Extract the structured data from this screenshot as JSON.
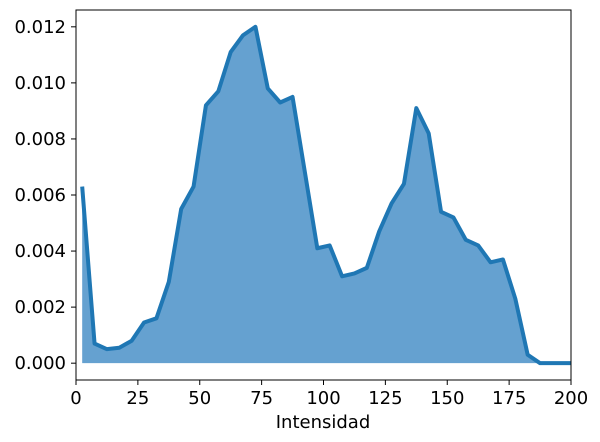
{
  "chart_data": {
    "type": "area",
    "title": "",
    "xlabel": "Intensidad",
    "ylabel": "",
    "xlim": [
      0,
      200
    ],
    "ylim": [
      -0.0006,
      0.0126
    ],
    "grid": false,
    "legend": "none",
    "x_ticks": [
      0,
      25,
      50,
      75,
      100,
      125,
      150,
      175,
      200
    ],
    "x_tick_labels": [
      "0",
      "25",
      "50",
      "75",
      "100",
      "125",
      "150",
      "175",
      "200"
    ],
    "y_ticks": [
      0,
      0.002,
      0.004,
      0.006,
      0.008,
      0.01,
      0.012
    ],
    "y_tick_labels": [
      "0.000",
      "0.002",
      "0.004",
      "0.006",
      "0.008",
      "0.010",
      "0.012"
    ],
    "series": [
      {
        "color": "#1f77b4",
        "fill_color": "#4a90c8",
        "x": [
          2.5,
          7.5,
          12.5,
          17.5,
          22.5,
          27.5,
          32.5,
          37.5,
          42.5,
          47.5,
          52.5,
          57.5,
          62.5,
          67.5,
          72.5,
          77.5,
          82.5,
          87.5,
          92.5,
          97.5,
          102.5,
          107.5,
          112.5,
          117.5,
          122.5,
          127.5,
          132.5,
          137.5,
          142.5,
          147.5,
          152.5,
          157.5,
          162.5,
          167.5,
          172.5,
          177.5,
          182.5,
          187.5,
          192.5,
          197.5,
          200
        ],
        "values": [
          0.0063,
          0.0007,
          0.0005,
          0.00055,
          0.0008,
          0.00145,
          0.0016,
          0.0029,
          0.0055,
          0.0063,
          0.0092,
          0.0097,
          0.0111,
          0.0117,
          0.012,
          0.0098,
          0.0093,
          0.0095,
          0.0068,
          0.0041,
          0.0042,
          0.0031,
          0.0032,
          0.0034,
          0.0047,
          0.0057,
          0.0064,
          0.0091,
          0.0082,
          0.0054,
          0.0052,
          0.0044,
          0.0042,
          0.0036,
          0.0037,
          0.0023,
          0.0003,
          0.0,
          0.0,
          0.0,
          0.0
        ]
      }
    ]
  }
}
